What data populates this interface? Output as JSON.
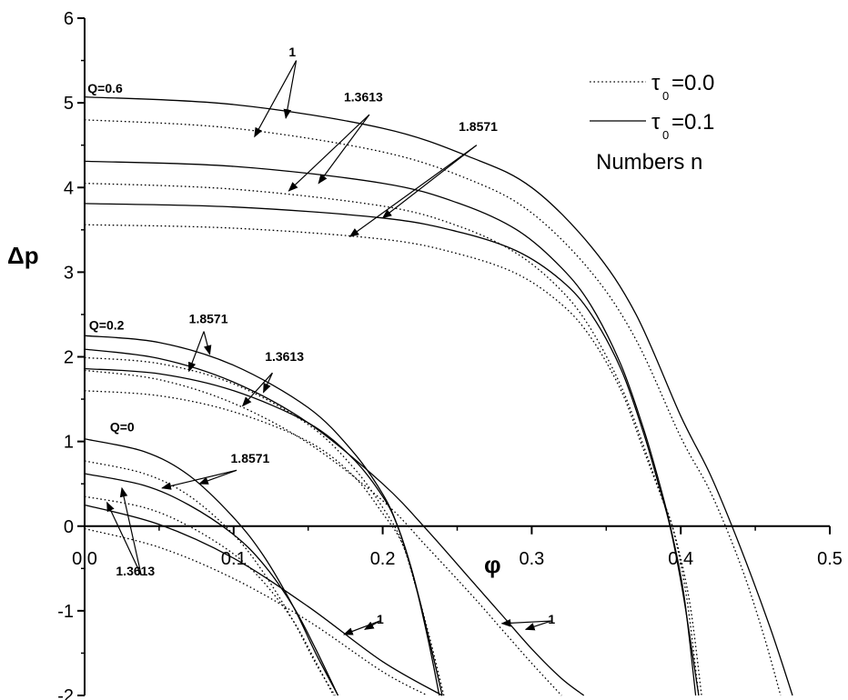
{
  "chart_data": {
    "type": "line",
    "xlabel": "φ",
    "ylabel": "Δp",
    "xlim": [
      0,
      0.5
    ],
    "ylim": [
      -2,
      6
    ],
    "x_ticks": [
      "0.0",
      "0.1",
      "0.2",
      "0.3",
      "0.4",
      "0.5"
    ],
    "y_ticks": [
      "-2",
      "-1",
      "0",
      "1",
      "2",
      "3",
      "4",
      "5",
      "6"
    ],
    "legend": {
      "position": "top-right",
      "entries": [
        {
          "symbol": "τ",
          "sub": "0",
          "text": "=0.0",
          "style": "dotted"
        },
        {
          "symbol": "τ",
          "sub": "0",
          "text": "=0.1",
          "style": "solid"
        }
      ],
      "note": "Numbers n"
    },
    "series": [
      {
        "Q": "0.6",
        "n": "1",
        "tau0": "0.1",
        "style": "solid",
        "x": [
          0,
          0.1,
          0.2,
          0.26,
          0.3,
          0.34,
          0.37,
          0.4,
          0.42,
          0.44,
          0.46,
          0.475
        ],
        "y": [
          5.07,
          4.98,
          4.7,
          4.35,
          4.0,
          3.3,
          2.5,
          1.3,
          0.6,
          -0.25,
          -1.2,
          -2.0
        ]
      },
      {
        "Q": "0.6",
        "n": "1",
        "tau0": "0.0",
        "style": "dotted",
        "x": [
          0,
          0.1,
          0.2,
          0.26,
          0.3,
          0.34,
          0.37,
          0.4,
          0.42,
          0.44,
          0.455,
          0.467
        ],
        "y": [
          4.8,
          4.7,
          4.42,
          4.08,
          3.7,
          3.0,
          2.2,
          1.05,
          0.4,
          -0.45,
          -1.25,
          -2.0
        ]
      },
      {
        "Q": "0.6",
        "n": "1.3613",
        "tau0": "0.1",
        "style": "solid",
        "x": [
          0,
          0.1,
          0.2,
          0.25,
          0.29,
          0.32,
          0.34,
          0.36,
          0.375,
          0.385,
          0.393,
          0.402,
          0.41
        ],
        "y": [
          4.31,
          4.25,
          4.05,
          3.82,
          3.5,
          3.05,
          2.6,
          1.9,
          1.15,
          0.55,
          0.0,
          -0.8,
          -2.0
        ]
      },
      {
        "Q": "0.6",
        "n": "1.3613",
        "tau0": "0.0",
        "style": "dotted",
        "x": [
          0,
          0.1,
          0.2,
          0.25,
          0.29,
          0.32,
          0.34,
          0.36,
          0.375,
          0.386,
          0.395,
          0.404,
          0.412
        ],
        "y": [
          4.05,
          3.98,
          3.78,
          3.55,
          3.22,
          2.78,
          2.32,
          1.65,
          0.95,
          0.4,
          -0.05,
          -0.85,
          -2.0
        ]
      },
      {
        "Q": "0.6",
        "n": "1.8571",
        "tau0": "0.1",
        "style": "solid",
        "x": [
          0,
          0.1,
          0.2,
          0.25,
          0.29,
          0.32,
          0.34,
          0.36,
          0.375,
          0.385,
          0.393,
          0.402,
          0.412
        ],
        "y": [
          3.81,
          3.77,
          3.64,
          3.48,
          3.25,
          2.9,
          2.5,
          1.85,
          1.1,
          0.5,
          -0.02,
          -0.85,
          -2.0
        ]
      },
      {
        "Q": "0.6",
        "n": "1.8571",
        "tau0": "0.0",
        "style": "dotted",
        "x": [
          0,
          0.1,
          0.2,
          0.25,
          0.29,
          0.32,
          0.34,
          0.36,
          0.375,
          0.388,
          0.396,
          0.406,
          0.414
        ],
        "y": [
          3.56,
          3.52,
          3.39,
          3.22,
          2.98,
          2.62,
          2.22,
          1.6,
          0.9,
          0.3,
          -0.1,
          -0.9,
          -2.0
        ]
      },
      {
        "Q": "0.2",
        "n": "1",
        "tau0": "0.1",
        "style": "solid",
        "x": [
          0,
          0.05,
          0.1,
          0.15,
          0.2,
          0.23,
          0.26,
          0.28,
          0.3,
          0.32,
          0.335
        ],
        "y": [
          2.09,
          1.98,
          1.7,
          1.22,
          0.5,
          -0.05,
          -0.65,
          -1.05,
          -1.45,
          -1.8,
          -2.0
        ]
      },
      {
        "Q": "0.2",
        "n": "1",
        "tau0": "0.0",
        "style": "dotted",
        "x": [
          0,
          0.05,
          0.1,
          0.15,
          0.2,
          0.23,
          0.26,
          0.28,
          0.3,
          0.32
        ],
        "y": [
          1.84,
          1.73,
          1.45,
          0.98,
          0.3,
          -0.25,
          -0.82,
          -1.22,
          -1.62,
          -2.0
        ]
      },
      {
        "Q": "0.2",
        "n": "1.3613",
        "tau0": "0.1",
        "style": "solid",
        "x": [
          0,
          0.05,
          0.1,
          0.15,
          0.18,
          0.2,
          0.21,
          0.22,
          0.23,
          0.24
        ],
        "y": [
          1.86,
          1.8,
          1.6,
          1.22,
          0.8,
          0.35,
          0.0,
          -0.55,
          -1.25,
          -2.0
        ]
      },
      {
        "Q": "0.2",
        "n": "1.3613",
        "tau0": "0.0",
        "style": "dotted",
        "x": [
          0,
          0.05,
          0.1,
          0.15,
          0.18,
          0.2,
          0.213,
          0.222,
          0.232,
          0.241
        ],
        "y": [
          1.6,
          1.54,
          1.35,
          1.0,
          0.6,
          0.15,
          -0.2,
          -0.7,
          -1.35,
          -2.0
        ]
      },
      {
        "Q": "0.2",
        "n": "1.8571",
        "tau0": "0.1",
        "style": "solid",
        "x": [
          0,
          0.05,
          0.1,
          0.15,
          0.18,
          0.2,
          0.21,
          0.22,
          0.23,
          0.238
        ],
        "y": [
          2.25,
          2.17,
          1.9,
          1.4,
          0.88,
          0.38,
          0.0,
          -0.55,
          -1.3,
          -2.0
        ]
      },
      {
        "Q": "0.2",
        "n": "1.8571",
        "tau0": "0.0",
        "style": "dotted",
        "x": [
          0,
          0.05,
          0.1,
          0.15,
          0.18,
          0.2,
          0.212,
          0.222,
          0.232,
          0.24
        ],
        "y": [
          1.99,
          1.92,
          1.68,
          1.2,
          0.7,
          0.22,
          -0.15,
          -0.7,
          -1.4,
          -2.0
        ]
      },
      {
        "Q": "0",
        "n": "1",
        "tau0": "0.1",
        "style": "solid",
        "x": [
          0,
          0.05,
          0.1,
          0.15,
          0.2,
          0.24
        ],
        "y": [
          0.25,
          0.02,
          -0.38,
          -0.95,
          -1.6,
          -2.0
        ]
      },
      {
        "Q": "0",
        "n": "1",
        "tau0": "0.0",
        "style": "dotted",
        "x": [
          0,
          0.05,
          0.1,
          0.15,
          0.2,
          0.23
        ],
        "y": [
          -0.03,
          -0.25,
          -0.62,
          -1.12,
          -1.72,
          -2.0
        ]
      },
      {
        "Q": "0",
        "n": "1.3613",
        "tau0": "0.1",
        "style": "solid",
        "x": [
          0,
          0.04,
          0.07,
          0.1,
          0.12,
          0.14,
          0.155,
          0.17
        ],
        "y": [
          0.62,
          0.48,
          0.25,
          -0.1,
          -0.45,
          -0.95,
          -1.45,
          -2.0
        ]
      },
      {
        "Q": "0",
        "n": "1.3613",
        "tau0": "0.0",
        "style": "dotted",
        "x": [
          0,
          0.04,
          0.07,
          0.1,
          0.12,
          0.14,
          0.155,
          0.167
        ],
        "y": [
          0.35,
          0.22,
          0.0,
          -0.33,
          -0.66,
          -1.12,
          -1.6,
          -2.0
        ]
      },
      {
        "Q": "0",
        "n": "1.8571",
        "tau0": "0.1",
        "style": "solid",
        "x": [
          0,
          0.04,
          0.07,
          0.1,
          0.12,
          0.14,
          0.155,
          0.17
        ],
        "y": [
          1.03,
          0.88,
          0.6,
          0.1,
          -0.35,
          -0.95,
          -1.5,
          -2.0
        ]
      },
      {
        "Q": "0",
        "n": "1.8571",
        "tau0": "0.0",
        "style": "dotted",
        "x": [
          0,
          0.04,
          0.07,
          0.1,
          0.12,
          0.14,
          0.155,
          0.168
        ],
        "y": [
          0.77,
          0.62,
          0.36,
          -0.1,
          -0.55,
          -1.12,
          -1.62,
          -2.0
        ]
      }
    ],
    "annotations": [
      {
        "text": "Q=0.6",
        "x": 0.002,
        "y": 5.12
      },
      {
        "text": "Q=0.2",
        "x": 0.003,
        "y": 2.32
      },
      {
        "text": "Q=0",
        "x": 0.017,
        "y": 1.12
      },
      {
        "text": "1",
        "x": 0.137,
        "y": 5.55
      },
      {
        "text": "1.3613",
        "x": 0.174,
        "y": 5.02
      },
      {
        "text": "1.8571",
        "x": 0.251,
        "y": 4.67
      },
      {
        "text": "1.8571",
        "x": 0.07,
        "y": 2.4
      },
      {
        "text": "1.3613",
        "x": 0.121,
        "y": 1.95
      },
      {
        "text": "1.8571",
        "x": 0.098,
        "y": 0.75
      },
      {
        "text": "1.3613",
        "x": 0.021,
        "y": -0.58
      },
      {
        "text": "1",
        "x": 0.196,
        "y": -1.15
      },
      {
        "text": "1",
        "x": 0.311,
        "y": -1.15
      }
    ],
    "arrows": [
      {
        "from": [
          0.142,
          5.5
        ],
        "to": [
          0.114,
          4.6
        ]
      },
      {
        "from": [
          0.142,
          5.5
        ],
        "to": [
          0.135,
          4.82
        ]
      },
      {
        "from": [
          0.191,
          4.86
        ],
        "to": [
          0.137,
          3.96
        ]
      },
      {
        "from": [
          0.191,
          4.86
        ],
        "to": [
          0.157,
          4.05
        ]
      },
      {
        "from": [
          0.263,
          4.5
        ],
        "to": [
          0.178,
          3.42
        ]
      },
      {
        "from": [
          0.263,
          4.5
        ],
        "to": [
          0.2,
          3.64
        ]
      },
      {
        "from": [
          0.08,
          2.3
        ],
        "to": [
          0.07,
          1.83
        ]
      },
      {
        "from": [
          0.08,
          2.3
        ],
        "to": [
          0.084,
          2.03
        ]
      },
      {
        "from": [
          0.126,
          1.81
        ],
        "to": [
          0.106,
          1.42
        ]
      },
      {
        "from": [
          0.126,
          1.81
        ],
        "to": [
          0.12,
          1.58
        ]
      },
      {
        "from": [
          0.102,
          0.66
        ],
        "to": [
          0.052,
          0.45
        ]
      },
      {
        "from": [
          0.102,
          0.66
        ],
        "to": [
          0.077,
          0.5
        ]
      },
      {
        "from": [
          0.038,
          -0.58
        ],
        "to": [
          0.015,
          0.28
        ]
      },
      {
        "from": [
          0.038,
          -0.58
        ],
        "to": [
          0.025,
          0.45
        ]
      },
      {
        "from": [
          0.198,
          -1.12
        ],
        "to": [
          0.174,
          -1.28
        ]
      },
      {
        "from": [
          0.198,
          -1.12
        ],
        "to": [
          0.188,
          -1.22
        ]
      },
      {
        "from": [
          0.313,
          -1.12
        ],
        "to": [
          0.28,
          -1.15
        ]
      },
      {
        "from": [
          0.313,
          -1.12
        ],
        "to": [
          0.296,
          -1.22
        ]
      }
    ]
  }
}
